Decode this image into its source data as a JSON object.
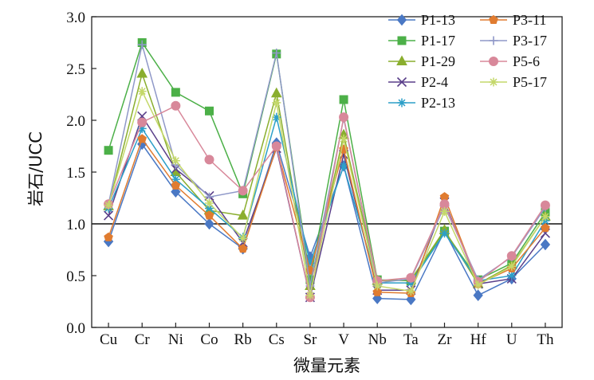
{
  "chart_data": {
    "type": "line",
    "title": "",
    "xlabel": "微量元素",
    "ylabel": "岩石/UCC",
    "categories": [
      "Cu",
      "Cr",
      "Ni",
      "Co",
      "Rb",
      "Cs",
      "Sr",
      "V",
      "Nb",
      "Ta",
      "Zr",
      "Hf",
      "U",
      "Th"
    ],
    "ylim": [
      0.0,
      3.0
    ],
    "yticks": [
      "0.0",
      "0.5",
      "1.0",
      "1.5",
      "2.0",
      "2.5",
      "3.0"
    ],
    "reference_line": 1.0,
    "legend_position": "top-right",
    "series": [
      {
        "name": "P1-13",
        "color": "#4a78c4",
        "marker": "diamond",
        "values": [
          0.83,
          1.77,
          1.31,
          1.0,
          0.76,
          1.78,
          0.68,
          1.56,
          0.28,
          0.27,
          0.93,
          0.31,
          0.47,
          0.8
        ]
      },
      {
        "name": "P1-17",
        "color": "#4cb048",
        "marker": "square",
        "values": [
          1.71,
          2.75,
          2.27,
          2.09,
          1.29,
          2.64,
          0.46,
          2.2,
          0.46,
          0.45,
          0.93,
          0.46,
          0.62,
          1.11
        ]
      },
      {
        "name": "P1-29",
        "color": "#8aae2e",
        "marker": "triangle",
        "values": [
          1.17,
          2.45,
          1.5,
          1.13,
          1.08,
          2.26,
          0.4,
          1.86,
          0.45,
          0.46,
          0.94,
          0.42,
          0.6,
          1.07
        ]
      },
      {
        "name": "P2-4",
        "color": "#5a3f8a",
        "marker": "x",
        "values": [
          1.08,
          2.04,
          1.53,
          1.27,
          0.82,
          1.73,
          0.29,
          1.67,
          0.36,
          0.36,
          1.21,
          0.42,
          0.47,
          0.91
        ]
      },
      {
        "name": "P2-13",
        "color": "#2d9fc8",
        "marker": "star",
        "values": [
          1.15,
          1.92,
          1.43,
          1.15,
          0.87,
          2.03,
          0.62,
          1.56,
          0.43,
          0.43,
          0.91,
          0.45,
          0.5,
          1.03
        ]
      },
      {
        "name": "P3-11",
        "color": "#e07c30",
        "marker": "pentagon",
        "values": [
          0.87,
          1.82,
          1.37,
          1.08,
          0.76,
          1.74,
          0.55,
          1.72,
          0.34,
          0.33,
          1.26,
          0.42,
          0.57,
          0.96
        ]
      },
      {
        "name": "P3-17",
        "color": "#8f98c8",
        "marker": "plus",
        "values": [
          1.19,
          2.73,
          1.57,
          1.26,
          1.32,
          2.65,
          0.4,
          2.02,
          0.43,
          0.47,
          1.17,
          0.46,
          0.68,
          1.16
        ]
      },
      {
        "name": "P5-6",
        "color": "#d8889a",
        "marker": "circle",
        "values": [
          1.19,
          1.98,
          2.14,
          1.62,
          1.32,
          1.75,
          0.29,
          2.03,
          0.45,
          0.48,
          1.19,
          0.44,
          0.69,
          1.18
        ]
      },
      {
        "name": "P5-17",
        "color": "#c4d86a",
        "marker": "star",
        "values": [
          1.18,
          2.28,
          1.61,
          1.2,
          0.86,
          2.17,
          0.31,
          1.82,
          0.4,
          0.35,
          1.12,
          0.41,
          0.59,
          1.07
        ]
      }
    ]
  }
}
